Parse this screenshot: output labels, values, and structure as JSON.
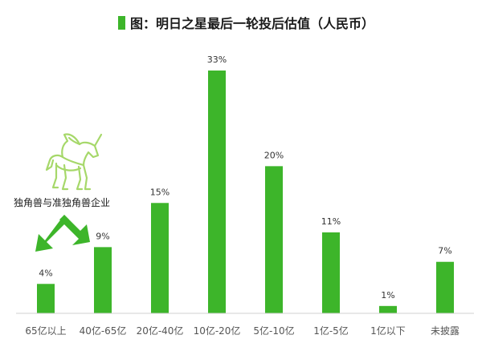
{
  "colors": {
    "bar": "#3db52a",
    "accent": "#3db52a",
    "icon": "#a6d86a",
    "axis": "#d0d0d0"
  },
  "chart_data": {
    "type": "bar",
    "title": "图：明日之星最后一轮投后估值（人民币）",
    "categories": [
      "65亿以上",
      "40亿-65亿",
      "20亿-40亿",
      "10亿-20亿",
      "5亿-10亿",
      "1亿-5亿",
      "1亿以下",
      "未披露"
    ],
    "values": [
      4,
      9,
      15,
      33,
      20,
      11,
      1,
      7
    ],
    "value_labels": [
      "4%",
      "9%",
      "15%",
      "33%",
      "20%",
      "11%",
      "1%",
      "7%"
    ],
    "unit": "%",
    "ylim": [
      0,
      33
    ],
    "grid": false,
    "annotation": {
      "text": "独角兽与准独角兽企业",
      "icon": "unicorn-icon"
    }
  }
}
